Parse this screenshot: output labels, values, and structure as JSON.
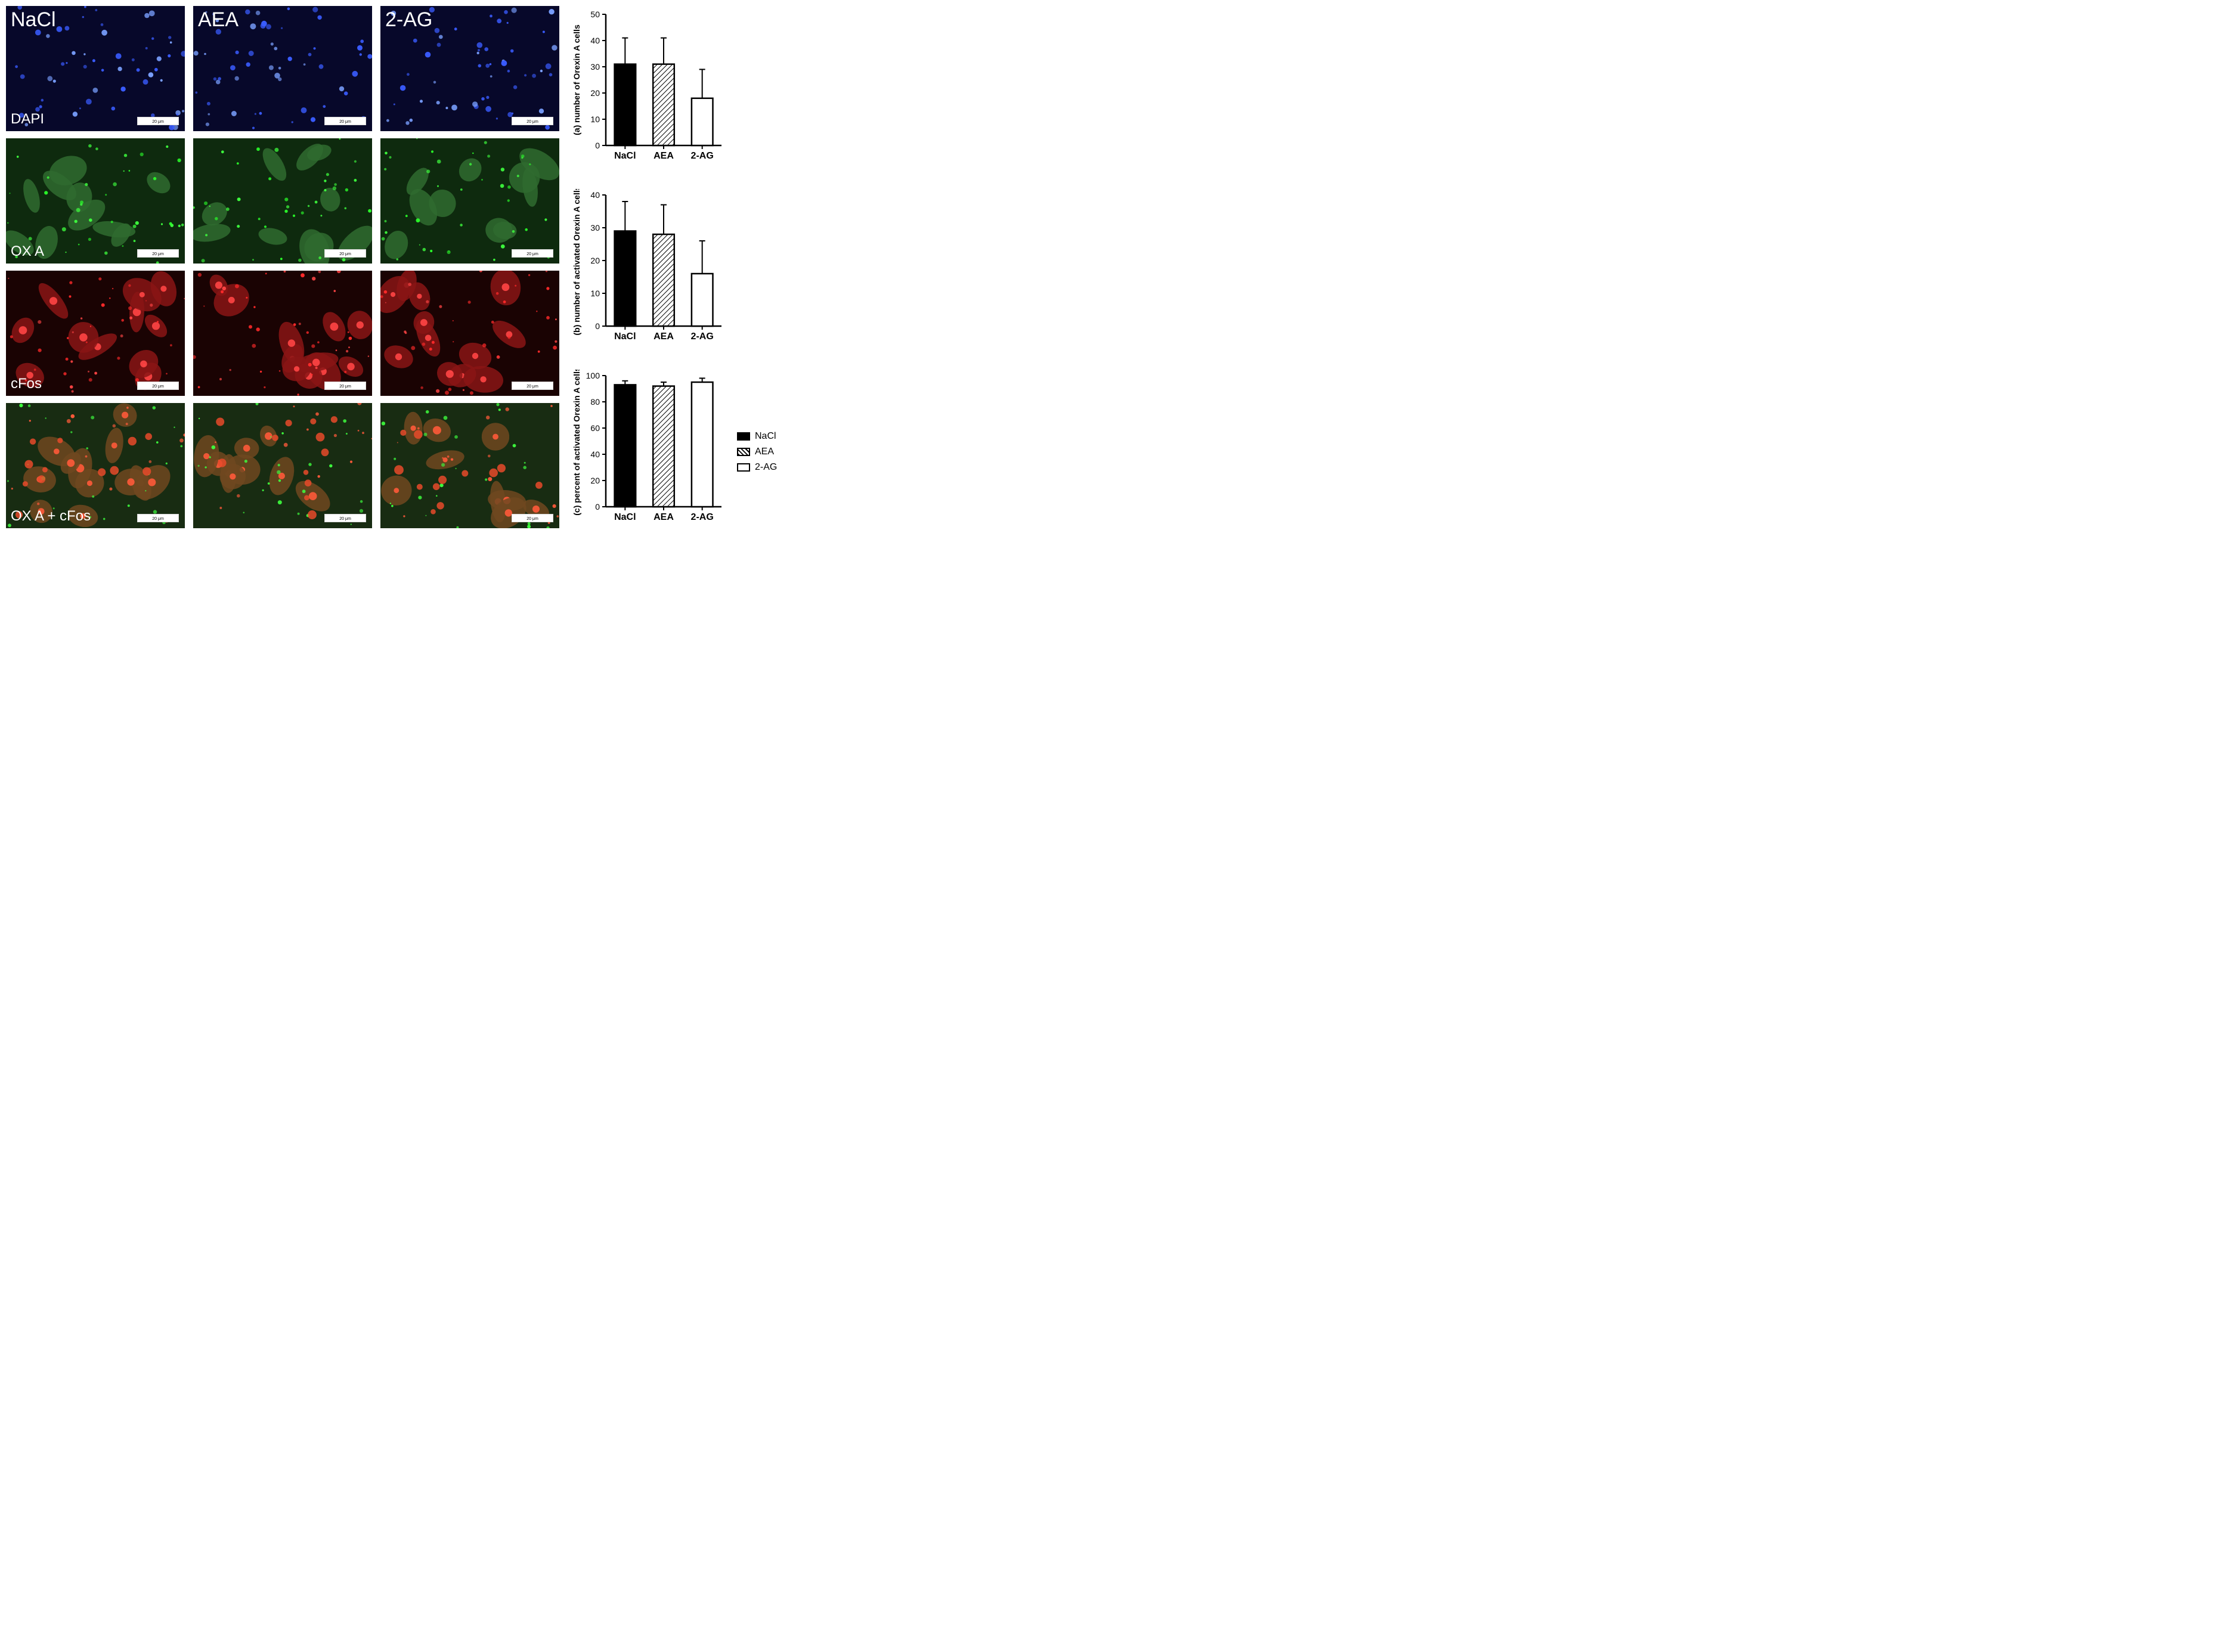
{
  "micrographs": {
    "columns": [
      "NaCl",
      "AEA",
      "2-AG"
    ],
    "rows": [
      "DAPI",
      "OX A",
      "cFos",
      "OX A + cFos"
    ],
    "scalebar_label": "20 μm",
    "row_styles": {
      "DAPI": {
        "bg": "#07082a",
        "dot_color": "#3a5cff",
        "speck_color": "#7aa0ff",
        "cell_color": "none"
      },
      "OX A": {
        "bg": "#0e2a0e",
        "dot_color": "#3eff3e",
        "speck_color": "#2aff2a",
        "cell_color": "#2f6b2f"
      },
      "cFos": {
        "bg": "#1a0303",
        "dot_color": "#ff2a2a",
        "speck_color": "#ff4545",
        "cell_color": "#8a1515"
      },
      "merged": {
        "bg": "#182c12",
        "dot_color": "#3eff3e",
        "speck_color": "#ff5a3a",
        "cell_color": "#704820"
      }
    }
  },
  "charts": {
    "categories": [
      "NaCl",
      "AEA",
      "2-AG"
    ],
    "category_fontsize": 16,
    "category_fontweight": "bold",
    "axis_label_fontsize": 14,
    "axis_label_fontweight": "bold",
    "tick_fontsize": 14,
    "bar_outline": "#000000",
    "bar_width": 0.55,
    "bar_fills": [
      "#000000",
      "hatch",
      "#ffffff"
    ],
    "hatch_fg": "#000000",
    "hatch_bg": "#ffffff",
    "error_cap_width": 10,
    "a": {
      "ylabel": "(a) number of Orexin A cells",
      "ylim": [
        0,
        50
      ],
      "ytick_step": 10,
      "values": [
        31,
        31,
        18
      ],
      "errors": [
        10,
        10,
        11
      ]
    },
    "b": {
      "ylabel": "(b) number of activated Orexin A cells",
      "ylim": [
        0,
        40
      ],
      "ytick_step": 10,
      "values": [
        29,
        28,
        16
      ],
      "errors": [
        9,
        9,
        10
      ]
    },
    "c": {
      "ylabel": "(c) percent of activated Orexin A cells",
      "ylim": [
        0,
        100
      ],
      "ytick_step": 20,
      "values": [
        93,
        92,
        95
      ],
      "errors": [
        3,
        3,
        3
      ]
    },
    "legend": {
      "items": [
        {
          "label": "NaCl",
          "fill": "#000000"
        },
        {
          "label": "AEA",
          "fill": "hatch"
        },
        {
          "label": "2-AG",
          "fill": "#ffffff"
        }
      ]
    }
  }
}
